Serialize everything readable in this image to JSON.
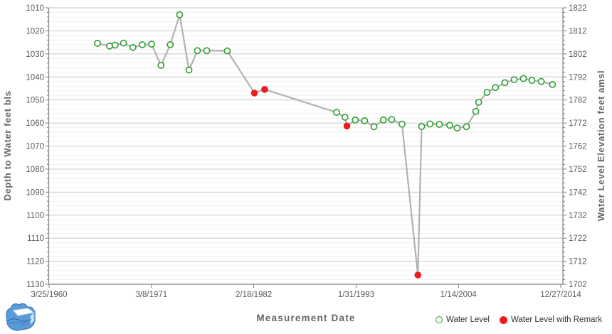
{
  "chart_data": {
    "type": "line",
    "title": "",
    "xlabel": "Measurement Date",
    "ylabel_left": "Depth to Water feet bls",
    "ylabel_right": "Water Level Elevation feet amsl",
    "x_tick_labels": [
      "3/25/1960",
      "3/8/1971",
      "2/18/1982",
      "1/31/1993",
      "1/14/2004",
      "12/27/2014"
    ],
    "x_tick_years": [
      1960.23,
      1971.182,
      1982.134,
      1993.086,
      2004.038,
      2014.99
    ],
    "x_range_years": [
      1960.23,
      2014.99
    ],
    "y_left": {
      "min": 1010,
      "max": 1130,
      "major_step": 10,
      "minor_step": 2
    },
    "y_right": {
      "min": 1702,
      "max": 1822,
      "major_step": 10,
      "minor_step": 2
    },
    "grid": {
      "major_color": "#c6c6c6",
      "minor_color": "#f1f1f1",
      "axis_color": "#808080"
    },
    "line_color": "#b2b2b2",
    "series": [
      {
        "name": "Water Level",
        "marker": "open-circle",
        "color": "#2f9e2f"
      },
      {
        "name": "Water Level with Remark",
        "marker": "filled-circle",
        "color": "#ec1c1c"
      }
    ],
    "points": [
      {
        "year": 1965.4,
        "depth": 1025.4
      },
      {
        "year": 1966.7,
        "depth": 1026.6
      },
      {
        "year": 1967.3,
        "depth": 1026.2
      },
      {
        "year": 1968.2,
        "depth": 1025.3
      },
      {
        "year": 1969.2,
        "depth": 1027.2
      },
      {
        "year": 1970.2,
        "depth": 1026.0
      },
      {
        "year": 1971.2,
        "depth": 1025.8
      },
      {
        "year": 1972.2,
        "depth": 1035.0
      },
      {
        "year": 1973.2,
        "depth": 1026.0
      },
      {
        "year": 1974.2,
        "depth": 1013.0
      },
      {
        "year": 1975.2,
        "depth": 1037.0
      },
      {
        "year": 1976.1,
        "depth": 1028.6
      },
      {
        "year": 1977.1,
        "depth": 1028.6
      },
      {
        "year": 1979.3,
        "depth": 1028.7
      },
      {
        "year": 1982.2,
        "depth": 1047.0,
        "remark": true
      },
      {
        "year": 1983.3,
        "depth": 1045.4,
        "remark": true
      },
      {
        "year": 1991.0,
        "depth": 1055.4
      },
      {
        "year": 1991.9,
        "depth": 1057.5
      },
      {
        "year": 1992.1,
        "depth": 1061.3,
        "remark": true
      },
      {
        "year": 1993.0,
        "depth": 1058.7
      },
      {
        "year": 1994.0,
        "depth": 1059.0
      },
      {
        "year": 1995.0,
        "depth": 1061.6
      },
      {
        "year": 1996.0,
        "depth": 1058.7
      },
      {
        "year": 1996.9,
        "depth": 1058.5
      },
      {
        "year": 1998.0,
        "depth": 1060.5
      },
      {
        "year": 1999.7,
        "depth": 1126.0,
        "remark": true
      },
      {
        "year": 2000.1,
        "depth": 1061.5
      },
      {
        "year": 2001.0,
        "depth": 1060.4
      },
      {
        "year": 2002.0,
        "depth": 1060.6
      },
      {
        "year": 2003.1,
        "depth": 1061.0
      },
      {
        "year": 2003.9,
        "depth": 1062.2
      },
      {
        "year": 2004.9,
        "depth": 1061.6
      },
      {
        "year": 2005.9,
        "depth": 1055.0
      },
      {
        "year": 2006.2,
        "depth": 1051.0
      },
      {
        "year": 2007.1,
        "depth": 1046.7
      },
      {
        "year": 2008.0,
        "depth": 1044.6
      },
      {
        "year": 2009.0,
        "depth": 1042.5
      },
      {
        "year": 2010.0,
        "depth": 1041.2
      },
      {
        "year": 2011.0,
        "depth": 1040.7
      },
      {
        "year": 2011.9,
        "depth": 1041.5
      },
      {
        "year": 2012.9,
        "depth": 1042.0
      },
      {
        "year": 2014.1,
        "depth": 1043.3
      }
    ]
  }
}
